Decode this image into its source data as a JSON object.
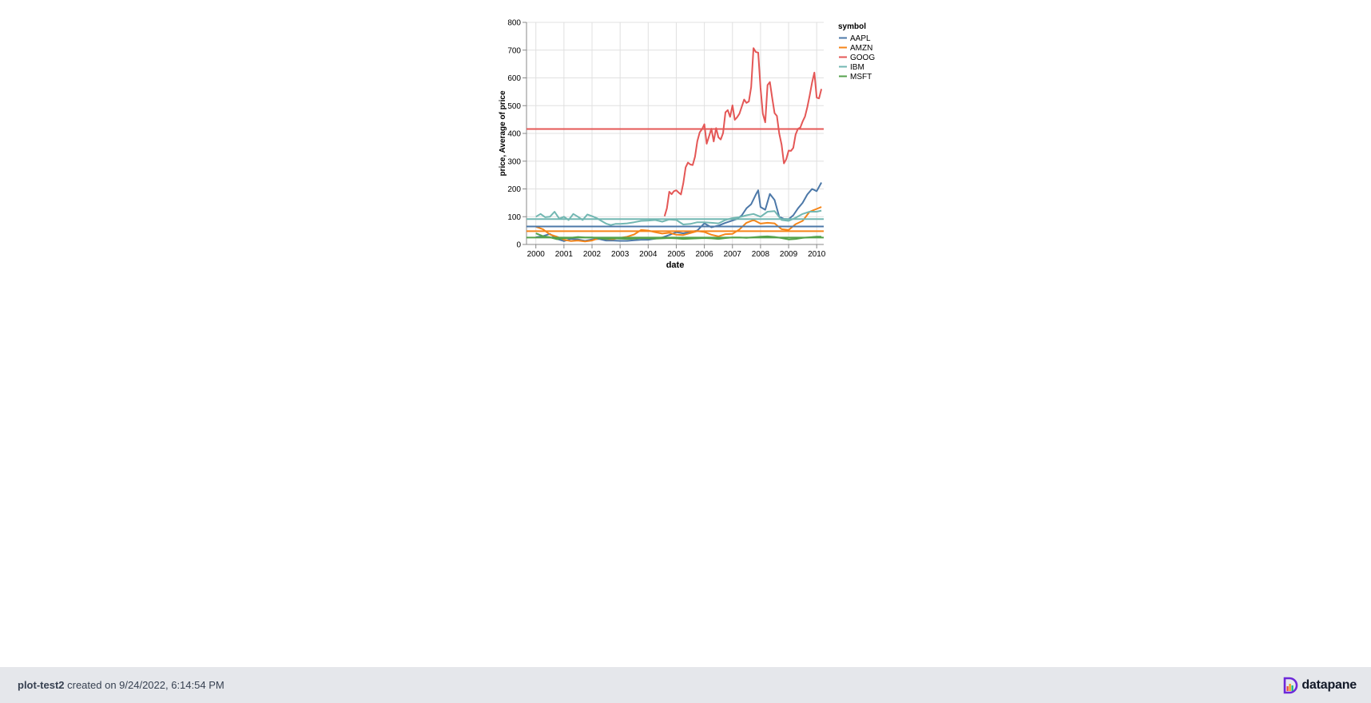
{
  "chart_data": {
    "type": "line",
    "xlabel": "date",
    "ylabel": "price, Average of price",
    "ylim": [
      0,
      800
    ],
    "yticks": [
      0,
      100,
      200,
      300,
      400,
      500,
      600,
      700,
      800
    ],
    "xticks": [
      "2000",
      "2001",
      "2002",
      "2003",
      "2004",
      "2005",
      "2006",
      "2007",
      "2008",
      "2009",
      "2010"
    ],
    "grid": true,
    "legend": {
      "title": "symbol",
      "position": "right"
    },
    "series": [
      {
        "name": "AAPL",
        "color": "#4c78a8",
        "mean": 64.7,
        "x": [
          "2000-01",
          "2000-04",
          "2000-07",
          "2000-10",
          "2001-01",
          "2001-04",
          "2001-07",
          "2001-10",
          "2002-01",
          "2002-04",
          "2002-07",
          "2002-10",
          "2003-01",
          "2003-04",
          "2003-07",
          "2003-10",
          "2004-01",
          "2004-04",
          "2004-07",
          "2004-10",
          "2005-01",
          "2005-04",
          "2005-07",
          "2005-10",
          "2006-01",
          "2006-04",
          "2006-07",
          "2006-10",
          "2007-01",
          "2007-03",
          "2007-05",
          "2007-07",
          "2007-09",
          "2007-11",
          "2007-12",
          "2008-01",
          "2008-03",
          "2008-05",
          "2008-07",
          "2008-09",
          "2008-11",
          "2009-01",
          "2009-03",
          "2009-05",
          "2009-07",
          "2009-09",
          "2009-11",
          "2010-01",
          "2010-03"
        ],
        "y": [
          26,
          30,
          38,
          20,
          12,
          20,
          18,
          13,
          18,
          20,
          14,
          14,
          13,
          13,
          15,
          17,
          17,
          21,
          25,
          34,
          44,
          40,
          45,
          50,
          76,
          62,
          68,
          78,
          86,
          92,
          105,
          130,
          145,
          180,
          195,
          135,
          125,
          182,
          160,
          100,
          92,
          91,
          105,
          130,
          150,
          180,
          200,
          192,
          223
        ]
      },
      {
        "name": "AMZN",
        "color": "#f58518",
        "mean": 47.99,
        "x": [
          "2000-01",
          "2000-04",
          "2000-07",
          "2000-10",
          "2001-01",
          "2001-04",
          "2001-07",
          "2001-10",
          "2002-01",
          "2002-04",
          "2002-07",
          "2002-10",
          "2003-01",
          "2003-04",
          "2003-07",
          "2003-10",
          "2004-01",
          "2004-04",
          "2004-07",
          "2004-10",
          "2005-01",
          "2005-04",
          "2005-07",
          "2005-10",
          "2006-01",
          "2006-04",
          "2006-07",
          "2006-10",
          "2007-01",
          "2007-04",
          "2007-07",
          "2007-10",
          "2008-01",
          "2008-04",
          "2008-07",
          "2008-10",
          "2009-01",
          "2009-04",
          "2009-07",
          "2009-10",
          "2010-01",
          "2010-03"
        ],
        "y": [
          64,
          55,
          36,
          28,
          17,
          12,
          14,
          11,
          14,
          23,
          20,
          19,
          24,
          28,
          36,
          52,
          50,
          44,
          39,
          42,
          35,
          34,
          41,
          48,
          45,
          35,
          29,
          37,
          38,
          54,
          78,
          88,
          75,
          78,
          76,
          55,
          52,
          73,
          85,
          118,
          128,
          135
        ]
      },
      {
        "name": "GOOG",
        "color": "#e45756",
        "mean": 415.87,
        "x": [
          "2004-08",
          "2004-09",
          "2004-10",
          "2004-11",
          "2004-12",
          "2005-01",
          "2005-02",
          "2005-03",
          "2005-04",
          "2005-05",
          "2005-06",
          "2005-07",
          "2005-08",
          "2005-09",
          "2005-10",
          "2005-11",
          "2005-12",
          "2006-01",
          "2006-02",
          "2006-03",
          "2006-04",
          "2006-05",
          "2006-06",
          "2006-07",
          "2006-08",
          "2006-09",
          "2006-10",
          "2006-11",
          "2006-12",
          "2007-01",
          "2007-02",
          "2007-03",
          "2007-04",
          "2007-05",
          "2007-06",
          "2007-07",
          "2007-08",
          "2007-09",
          "2007-10",
          "2007-11",
          "2007-12",
          "2008-01",
          "2008-02",
          "2008-03",
          "2008-04",
          "2008-05",
          "2008-06",
          "2008-07",
          "2008-08",
          "2008-09",
          "2008-10",
          "2008-11",
          "2008-12",
          "2009-01",
          "2009-02",
          "2009-03",
          "2009-04",
          "2009-05",
          "2009-06",
          "2009-07",
          "2009-08",
          "2009-09",
          "2009-10",
          "2009-11",
          "2009-12",
          "2010-01",
          "2010-02",
          "2010-03"
        ],
        "y": [
          102,
          130,
          190,
          181,
          192,
          195,
          187,
          180,
          220,
          278,
          295,
          288,
          286,
          316,
          372,
          404,
          415,
          433,
          363,
          390,
          417,
          371,
          419,
          386,
          378,
          401,
          476,
          484,
          460,
          501,
          449,
          458,
          471,
          497,
          522,
          510,
          515,
          567,
          707,
          693,
          691,
          564,
          471,
          440,
          574,
          585,
          526,
          473,
          463,
          400,
          359,
          292,
          307,
          338,
          337,
          348,
          396,
          417,
          421,
          443,
          461,
          495,
          536,
          583,
          619,
          529,
          526,
          560
        ]
      },
      {
        "name": "IBM",
        "color": "#72b7b2",
        "mean": 91.26,
        "x": [
          "2000-01",
          "2000-03",
          "2000-05",
          "2000-07",
          "2000-09",
          "2000-11",
          "2001-01",
          "2001-03",
          "2001-05",
          "2001-07",
          "2001-09",
          "2001-11",
          "2002-01",
          "2002-03",
          "2002-05",
          "2002-07",
          "2002-09",
          "2002-11",
          "2003-01",
          "2003-04",
          "2003-07",
          "2003-10",
          "2004-01",
          "2004-04",
          "2004-07",
          "2004-10",
          "2005-01",
          "2005-04",
          "2005-07",
          "2005-10",
          "2006-01",
          "2006-04",
          "2006-07",
          "2006-10",
          "2007-01",
          "2007-04",
          "2007-07",
          "2007-10",
          "2008-01",
          "2008-04",
          "2008-07",
          "2008-10",
          "2009-01",
          "2009-04",
          "2009-07",
          "2009-10",
          "2010-01",
          "2010-03"
        ],
        "y": [
          100,
          110,
          98,
          100,
          118,
          93,
          100,
          88,
          110,
          100,
          88,
          108,
          102,
          95,
          85,
          75,
          70,
          74,
          74,
          76,
          80,
          85,
          86,
          88,
          82,
          90,
          88,
          72,
          74,
          80,
          80,
          78,
          76,
          88,
          95,
          98,
          105,
          110,
          100,
          118,
          120,
          88,
          85,
          96,
          110,
          118,
          118,
          122
        ]
      },
      {
        "name": "MSFT",
        "color": "#54a24b",
        "mean": 24.73,
        "x": [
          "2000-01",
          "2000-04",
          "2000-07",
          "2000-10",
          "2001-01",
          "2001-04",
          "2001-07",
          "2001-10",
          "2002-01",
          "2002-04",
          "2002-07",
          "2002-10",
          "2003-01",
          "2003-04",
          "2003-07",
          "2003-10",
          "2004-01",
          "2004-04",
          "2004-07",
          "2004-10",
          "2005-01",
          "2005-04",
          "2005-07",
          "2005-10",
          "2006-01",
          "2006-04",
          "2006-07",
          "2006-10",
          "2007-01",
          "2007-04",
          "2007-07",
          "2007-10",
          "2008-01",
          "2008-04",
          "2008-07",
          "2008-10",
          "2009-01",
          "2009-04",
          "2009-07",
          "2009-10",
          "2010-01",
          "2010-03"
        ],
        "y": [
          40,
          30,
          26,
          19,
          22,
          24,
          27,
          25,
          25,
          22,
          20,
          22,
          21,
          20,
          21,
          23,
          22,
          21,
          22,
          23,
          22,
          20,
          21,
          22,
          23,
          22,
          20,
          23,
          25,
          25,
          24,
          26,
          28,
          29,
          27,
          23,
          18,
          20,
          24,
          26,
          28,
          28
        ]
      }
    ]
  },
  "footer": {
    "report_name": "plot-test2",
    "created_text": " created on 9/24/2022, 6:14:54 PM",
    "brand_name": "datapane"
  }
}
